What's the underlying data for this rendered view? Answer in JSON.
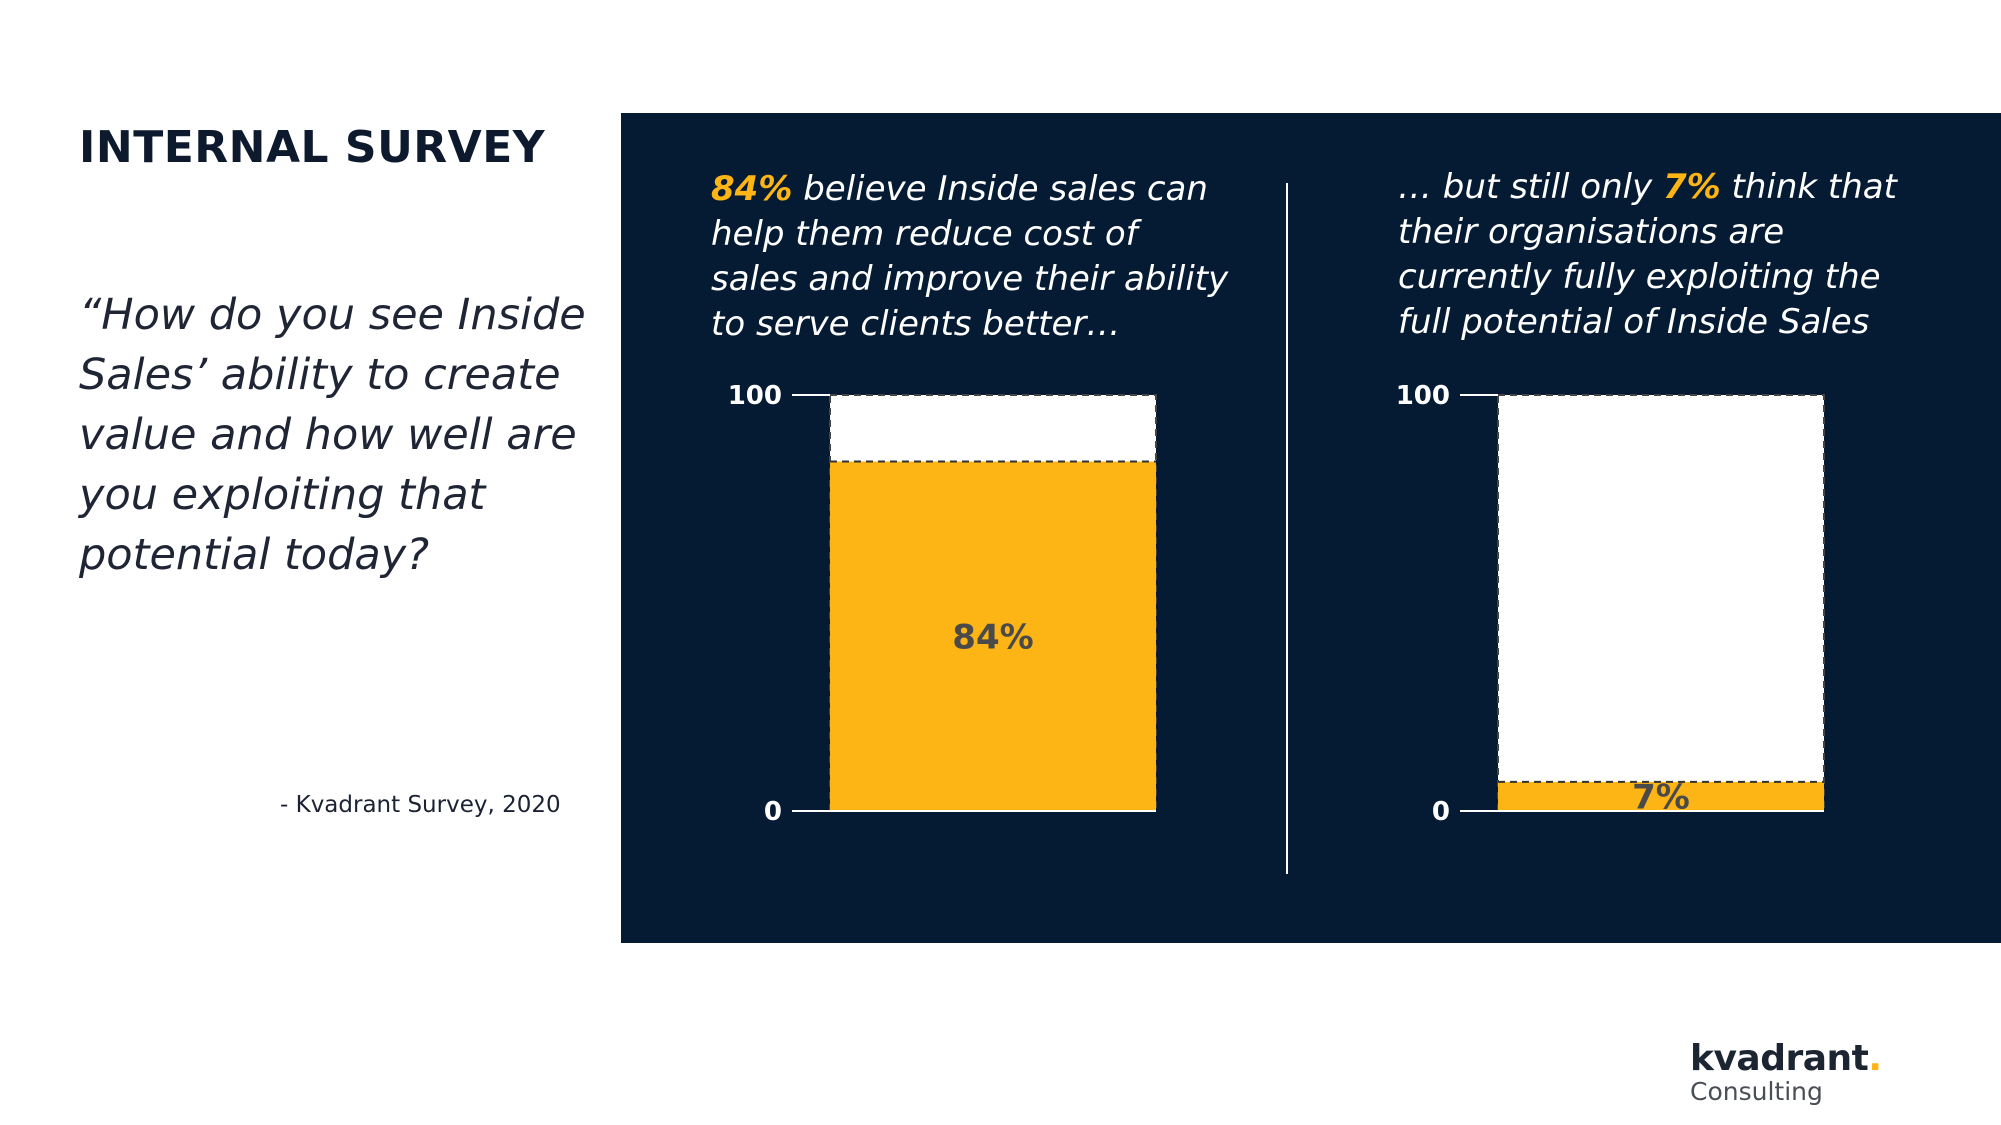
{
  "slide": {
    "heading": "INTERNAL SURVEY",
    "question": "“How do you see Inside Sales’ ability to create value and how well are you exploiting that potential today?",
    "source": "- Kvadrant Survey, 2020"
  },
  "panels": [
    {
      "caption_highlight": "84%",
      "caption_text": " believe Inside sales can help them reduce cost of sales and improve their ability to serve clients better…"
    },
    {
      "caption_pre": "… but still only ",
      "caption_highlight": "7%",
      "caption_post": " think that their organisations are currently fully exploiting the full potential of Inside Sales"
    }
  ],
  "chart_data": [
    {
      "type": "bar",
      "categories": [
        ""
      ],
      "values": [
        84
      ],
      "value_labels": [
        "84%"
      ],
      "ylim": [
        0,
        100
      ],
      "yticks": [
        "0",
        "100"
      ],
      "bar_color": "#fdb515",
      "remainder_color": "#ffffff",
      "remainder_style": "dashed"
    },
    {
      "type": "bar",
      "categories": [
        ""
      ],
      "values": [
        7
      ],
      "value_labels": [
        "7%"
      ],
      "ylim": [
        0,
        100
      ],
      "yticks": [
        "0",
        "100"
      ],
      "bar_color": "#fdb515",
      "remainder_color": "#ffffff",
      "remainder_style": "dashed"
    }
  ],
  "logo": {
    "wordmark": "kvadrant",
    "tagline": "Consulting"
  },
  "colors": {
    "panel_background": "#041b33",
    "accent": "#fdb515",
    "heading": "#0d1a2e"
  }
}
